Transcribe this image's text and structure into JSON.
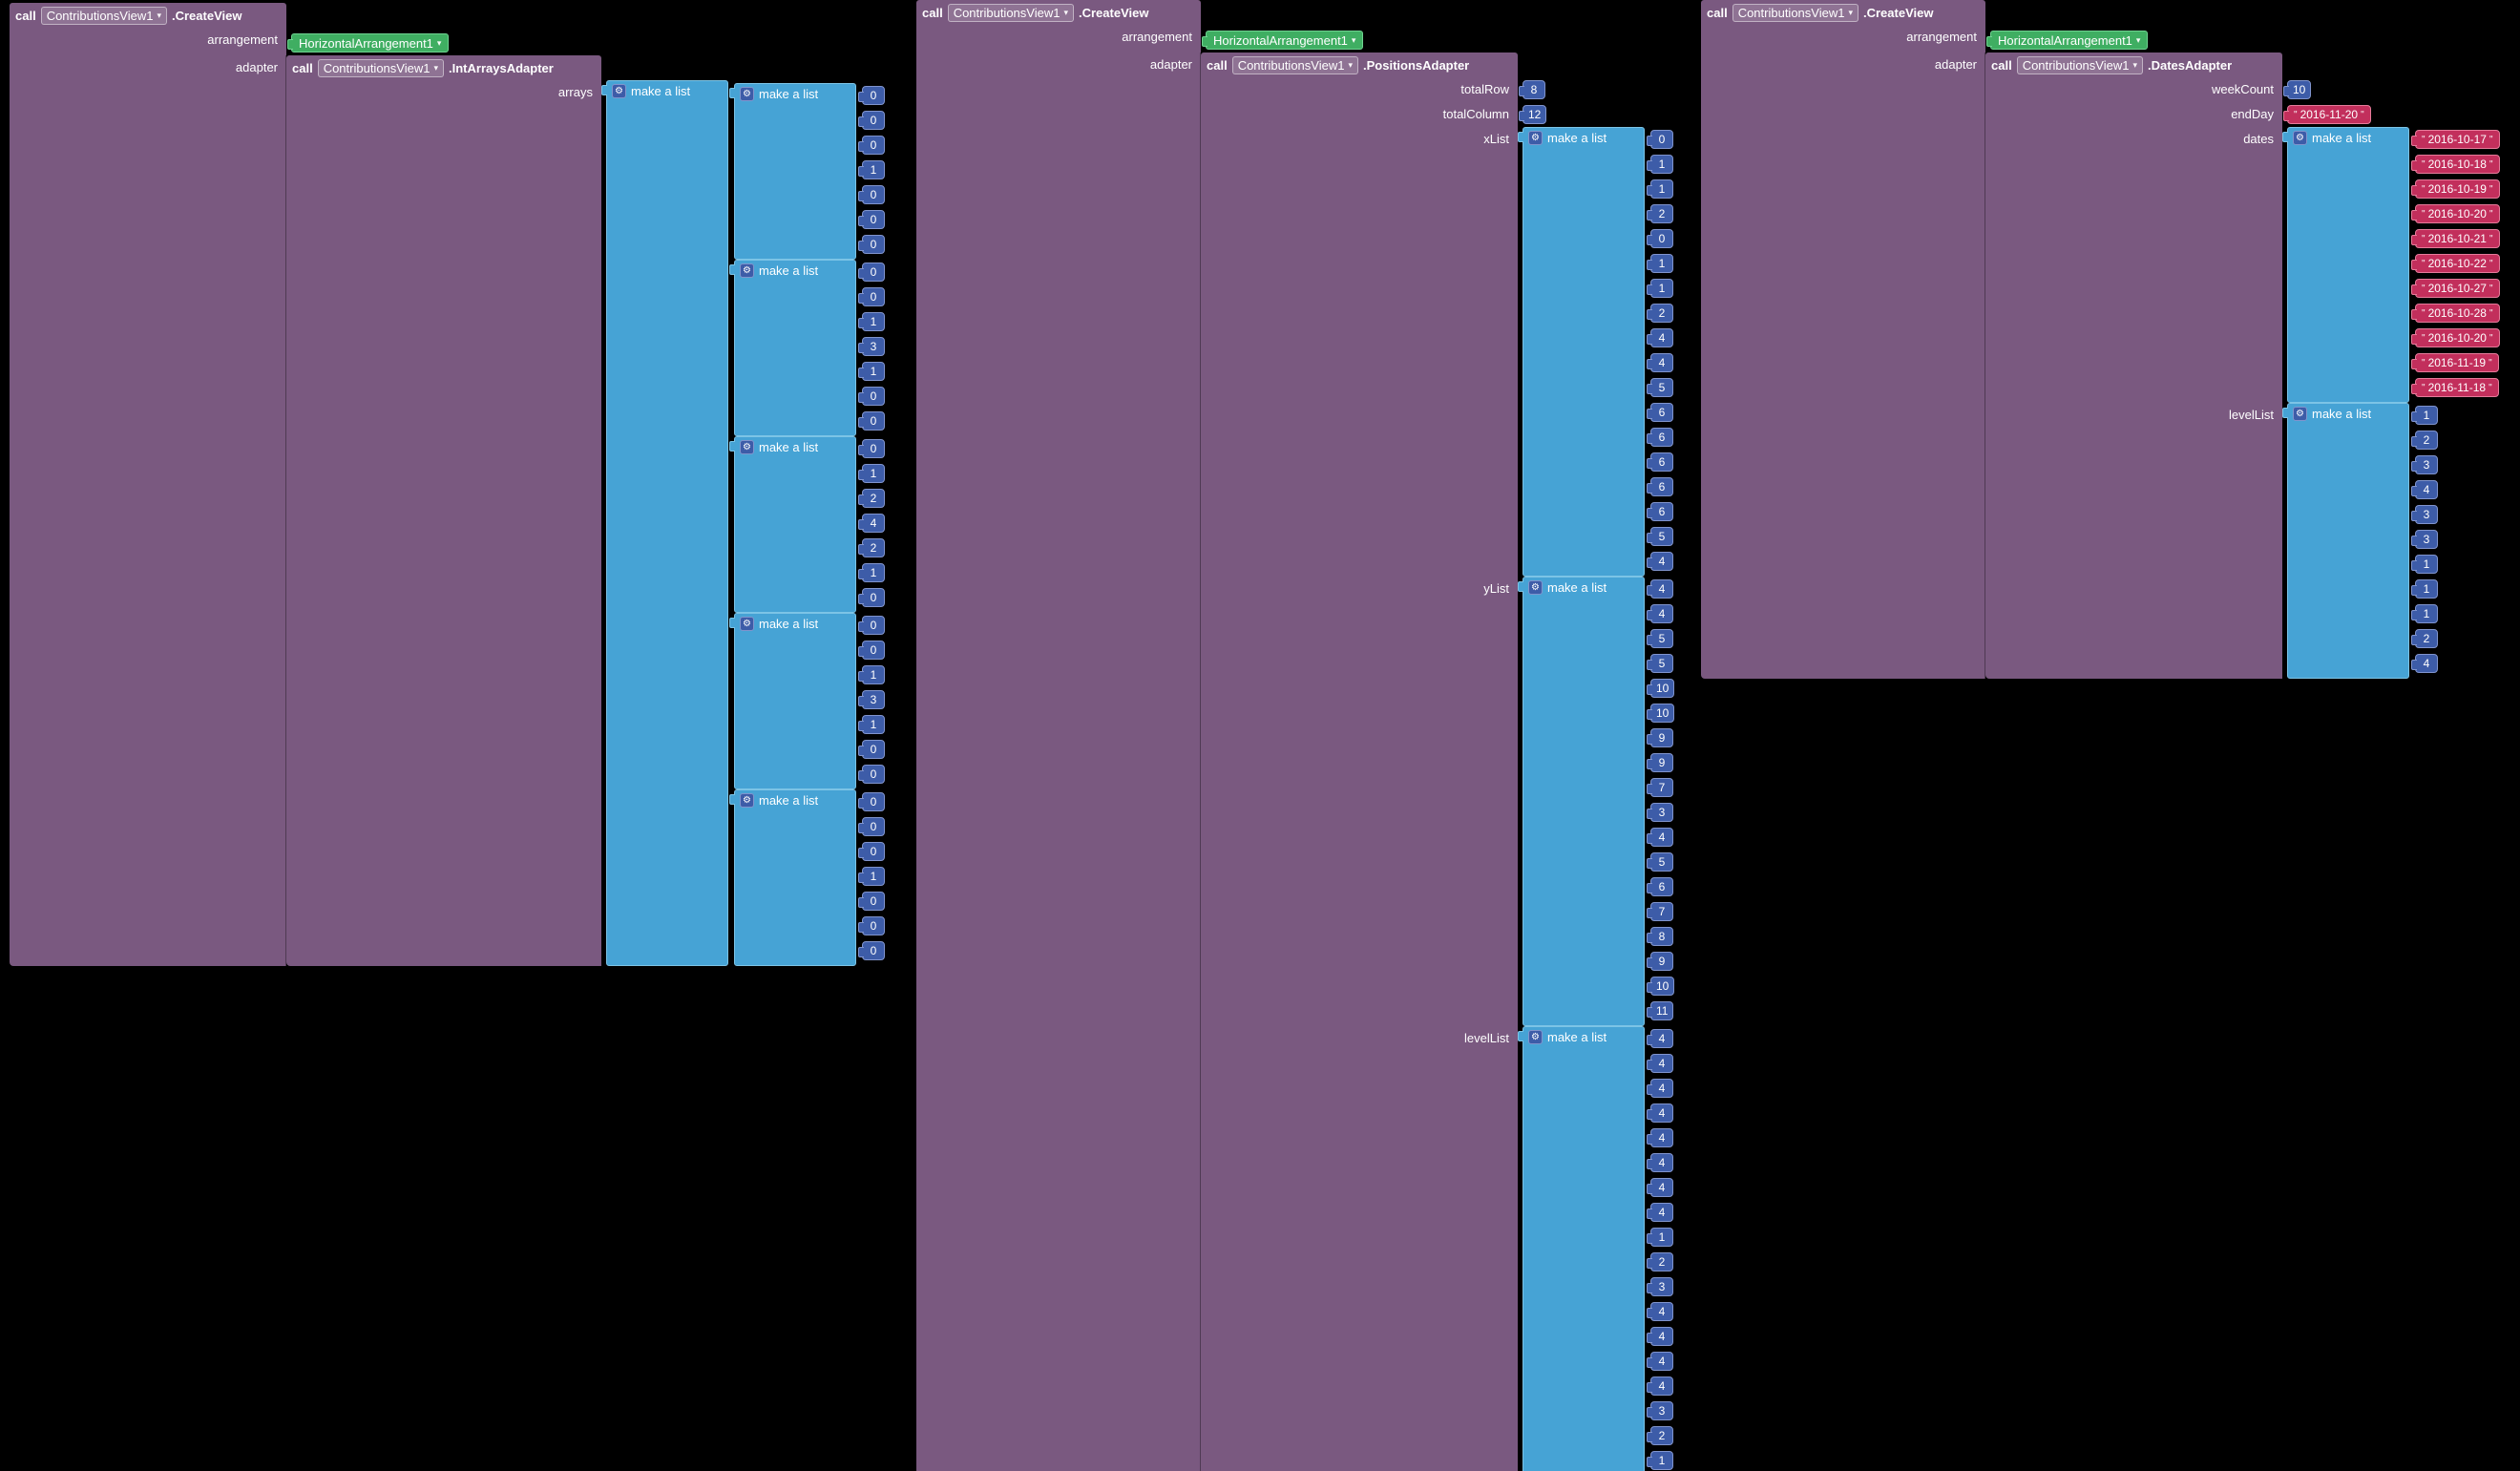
{
  "icons": {
    "caret": "▾",
    "gear": "⚙",
    "quote": "\""
  },
  "labels": {
    "make_a_list": "make a list"
  },
  "colors": {
    "canvas_bg": "#000000",
    "purple": "#7a5980",
    "green": "#3fae62",
    "green_border": "#6fd391",
    "cyan": "#46a3d5",
    "cyan_border": "#7cc4e6",
    "number_bg": "#3d5ca8",
    "number_border": "#8094cd",
    "text_bg": "#c22f5c",
    "text_border": "#e57b9a"
  },
  "blocks": [
    {
      "keyword": "call",
      "component": "ContributionsView1",
      "method": ".CreateView",
      "params": [
        {
          "label": "arrangement",
          "type": "component",
          "value": "HorizontalArrangement1"
        },
        {
          "label": "adapter",
          "type": "call",
          "call": {
            "keyword": "call",
            "component": "ContributionsView1",
            "method": ".IntArraysAdapter",
            "params": [
              {
                "label": "arrays",
                "type": "nested_num_lists",
                "lists": [
                  [
                    "0",
                    "0",
                    "0",
                    "1",
                    "0",
                    "0",
                    "0"
                  ],
                  [
                    "0",
                    "0",
                    "1",
                    "3",
                    "1",
                    "0",
                    "0"
                  ],
                  [
                    "0",
                    "1",
                    "2",
                    "4",
                    "2",
                    "1",
                    "0"
                  ],
                  [
                    "0",
                    "0",
                    "1",
                    "3",
                    "1",
                    "0",
                    "0"
                  ],
                  [
                    "0",
                    "0",
                    "0",
                    "1",
                    "0",
                    "0",
                    "0"
                  ]
                ]
              }
            ]
          }
        }
      ]
    },
    {
      "keyword": "call",
      "component": "ContributionsView1",
      "method": ".CreateView",
      "params": [
        {
          "label": "arrangement",
          "type": "component",
          "value": "HorizontalArrangement1"
        },
        {
          "label": "adapter",
          "type": "call",
          "call": {
            "keyword": "call",
            "component": "ContributionsView1",
            "method": ".PositionsAdapter",
            "params": [
              {
                "label": "totalRow",
                "type": "number",
                "value": "8"
              },
              {
                "label": "totalColumn",
                "type": "number",
                "value": "12"
              },
              {
                "label": "xList",
                "type": "num_list",
                "values": [
                  "0",
                  "1",
                  "1",
                  "2",
                  "0",
                  "1",
                  "1",
                  "2",
                  "4",
                  "4",
                  "5",
                  "6",
                  "6",
                  "6",
                  "6",
                  "6",
                  "5",
                  "4"
                ]
              },
              {
                "label": "yList",
                "type": "num_list",
                "values": [
                  "4",
                  "4",
                  "5",
                  "5",
                  "10",
                  "10",
                  "9",
                  "9",
                  "7",
                  "3",
                  "4",
                  "5",
                  "6",
                  "7",
                  "8",
                  "9",
                  "10",
                  "11"
                ]
              },
              {
                "label": "levelList",
                "type": "num_list",
                "values": [
                  "4",
                  "4",
                  "4",
                  "4",
                  "4",
                  "4",
                  "4",
                  "4",
                  "1",
                  "2",
                  "3",
                  "4",
                  "4",
                  "4",
                  "4",
                  "3",
                  "2",
                  "1"
                ]
              }
            ]
          }
        }
      ]
    },
    {
      "keyword": "call",
      "component": "ContributionsView1",
      "method": ".CreateView",
      "params": [
        {
          "label": "arrangement",
          "type": "component",
          "value": "HorizontalArrangement1"
        },
        {
          "label": "adapter",
          "type": "call",
          "call": {
            "keyword": "call",
            "component": "ContributionsView1",
            "method": ".DatesAdapter",
            "params": [
              {
                "label": "weekCount",
                "type": "number",
                "value": "10"
              },
              {
                "label": "endDay",
                "type": "text",
                "value": "2016-11-20"
              },
              {
                "label": "dates",
                "type": "text_list",
                "values": [
                  "2016-10-17",
                  "2016-10-18",
                  "2016-10-19",
                  "2016-10-20",
                  "2016-10-21",
                  "2016-10-22",
                  "2016-10-27",
                  "2016-10-28",
                  "2016-10-20",
                  "2016-11-19",
                  "2016-11-18"
                ]
              },
              {
                "label": "levelList",
                "type": "num_list",
                "values": [
                  "1",
                  "2",
                  "3",
                  "4",
                  "3",
                  "3",
                  "1",
                  "1",
                  "1",
                  "2",
                  "4"
                ]
              }
            ]
          }
        }
      ]
    }
  ]
}
